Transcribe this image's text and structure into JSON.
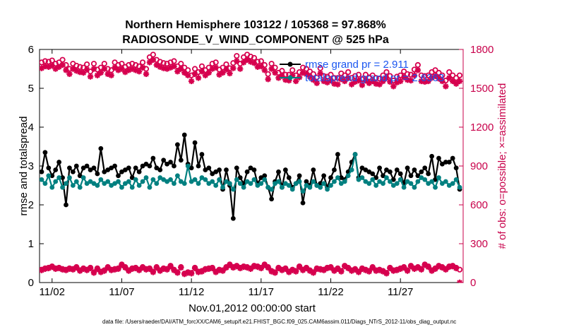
{
  "chart_data": {
    "type": "line",
    "title": "Northern Hemisphere 103122 / 105368 = 97.868%",
    "subtitle": "RADIOSONDE_V_WIND_COMPONENT @ 525 hPa",
    "xlabel": "Nov.01,2012 00:00:00 start",
    "ylabel": "rmse and totalspread",
    "ylabel_right": "# of obs: o=possible; ×=assimilated",
    "footer": "data file: /Users/raeder/DAI/ATM_forcXX/CAM6_setup/f.e21.FHIST_BGC.f09_025.CAM6assim.011/Diags_NTrS_2012-11/obs_diag_output.nc",
    "xlim": [
      0.6,
      31.0
    ],
    "ylim": [
      0,
      6
    ],
    "ylim_right": [
      0,
      1800
    ],
    "x_ticks": [
      1.5,
      6.5,
      11.5,
      16.5,
      21.5,
      26.5
    ],
    "x_tick_labels": [
      "11/02",
      "11/07",
      "11/12",
      "11/17",
      "11/22",
      "11/27"
    ],
    "y_ticks": [
      0,
      1,
      2,
      3,
      4,
      5,
      6
    ],
    "y_tick_labels": [
      "0",
      "1",
      "2",
      "3",
      "4",
      "5",
      "6"
    ],
    "y_ticks_right": [
      0,
      300,
      600,
      900,
      1200,
      1500,
      1800
    ],
    "y_tick_labels_right": [
      "0",
      "300",
      "600",
      "900",
      "1200",
      "1500",
      "1800"
    ],
    "x": [
      0.75,
      1.0,
      1.25,
      1.5,
      1.75,
      2.0,
      2.25,
      2.5,
      2.75,
      3.0,
      3.25,
      3.5,
      3.75,
      4.0,
      4.25,
      4.5,
      4.75,
      5.0,
      5.25,
      5.5,
      5.75,
      6.0,
      6.25,
      6.5,
      6.75,
      7.0,
      7.25,
      7.5,
      7.75,
      8.0,
      8.25,
      8.5,
      8.75,
      9.0,
      9.25,
      9.5,
      9.75,
      10.0,
      10.25,
      10.5,
      10.75,
      11.0,
      11.25,
      11.5,
      11.75,
      12.0,
      12.25,
      12.5,
      12.75,
      13.0,
      13.25,
      13.5,
      13.75,
      14.0,
      14.25,
      14.5,
      14.75,
      15.0,
      15.25,
      15.5,
      15.75,
      16.0,
      16.25,
      16.5,
      16.75,
      17.0,
      17.25,
      17.5,
      17.75,
      18.0,
      18.25,
      18.5,
      18.75,
      19.0,
      19.25,
      19.5,
      19.75,
      20.0,
      20.25,
      20.5,
      20.75,
      21.0,
      21.25,
      21.5,
      21.75,
      22.0,
      22.25,
      22.5,
      22.75,
      23.0,
      23.25,
      23.5,
      23.75,
      24.0,
      24.25,
      24.5,
      24.75,
      25.0,
      25.25,
      25.5,
      25.75,
      26.0,
      26.25,
      26.5,
      26.75,
      27.0,
      27.25,
      27.5,
      27.75,
      28.0,
      28.25,
      28.5,
      28.75,
      29.0,
      29.25,
      29.5,
      29.75,
      30.0,
      30.25,
      30.5,
      30.75
    ],
    "series": [
      {
        "name": "rmse",
        "legend_label": "rmse  grand pr = 2.911",
        "color": "#000000",
        "axis": "left",
        "marker": "filled-circle",
        "values": [
          2.85,
          3.35,
          2.95,
          2.75,
          2.9,
          3.1,
          2.7,
          2.0,
          2.95,
          2.85,
          3.0,
          2.75,
          2.95,
          3.0,
          2.9,
          2.95,
          2.8,
          3.45,
          2.85,
          2.9,
          2.95,
          3.0,
          2.75,
          2.85,
          2.9,
          2.95,
          2.7,
          2.95,
          2.85,
          3.0,
          3.05,
          3.0,
          3.2,
          2.95,
          2.9,
          3.15,
          3.05,
          3.1,
          3.0,
          3.55,
          3.15,
          3.8,
          3.05,
          2.95,
          3.6,
          3.0,
          3.3,
          2.9,
          2.95,
          2.8,
          2.85,
          2.9,
          2.4,
          2.9,
          2.5,
          1.65,
          2.95,
          2.7,
          2.55,
          2.85,
          2.95,
          2.9,
          2.55,
          2.7,
          2.75,
          2.45,
          2.15,
          2.6,
          2.85,
          2.45,
          2.9,
          2.7,
          2.45,
          2.55,
          2.75,
          2.05,
          2.6,
          2.5,
          2.9,
          2.5,
          2.55,
          2.75,
          2.45,
          2.7,
          2.9,
          3.3,
          2.7,
          2.65,
          2.85,
          3.1,
          3.3,
          2.7,
          2.95,
          2.9,
          2.85,
          2.8,
          2.7,
          2.95,
          2.75,
          2.9,
          2.85,
          2.65,
          2.9,
          2.8,
          2.55,
          2.95,
          2.75,
          2.9,
          2.75,
          2.85,
          2.95,
          2.8,
          3.25,
          2.65,
          3.2,
          3.05,
          3.1,
          3.1,
          3.2,
          2.95,
          2.4
        ]
      },
      {
        "name": "totalspread",
        "legend_label": "totalspread  grand pr = 2.6363",
        "color": "#008080",
        "axis": "left",
        "marker": "filled-circle",
        "values": [
          2.65,
          2.55,
          2.75,
          2.45,
          2.6,
          2.7,
          2.45,
          2.55,
          2.7,
          2.5,
          2.6,
          2.45,
          2.7,
          2.55,
          2.6,
          2.55,
          2.5,
          2.65,
          2.55,
          2.6,
          2.5,
          2.55,
          2.6,
          2.45,
          2.55,
          2.6,
          2.45,
          2.65,
          2.5,
          2.6,
          2.7,
          2.45,
          2.65,
          2.55,
          2.7,
          2.65,
          2.6,
          2.65,
          2.55,
          2.75,
          2.6,
          2.55,
          3.0,
          2.6,
          2.65,
          2.55,
          2.7,
          2.65,
          2.55,
          2.6,
          2.5,
          2.65,
          2.45,
          2.6,
          2.55,
          2.4,
          2.65,
          2.55,
          2.45,
          2.6,
          2.55,
          2.65,
          2.5,
          2.55,
          2.65,
          2.45,
          2.4,
          2.55,
          2.6,
          2.45,
          2.55,
          2.5,
          2.4,
          2.55,
          2.6,
          2.35,
          2.5,
          2.45,
          2.6,
          2.5,
          2.45,
          2.55,
          2.4,
          2.5,
          2.6,
          2.7,
          2.55,
          2.6,
          2.75,
          2.9,
          3.3,
          2.65,
          2.7,
          2.6,
          2.55,
          2.65,
          2.5,
          2.6,
          2.55,
          2.7,
          2.6,
          2.5,
          2.55,
          2.65,
          2.45,
          2.6,
          2.55,
          2.45,
          2.6,
          2.7,
          2.65,
          2.55,
          2.6,
          2.45,
          2.7,
          2.55,
          2.6,
          2.5,
          2.55,
          2.65,
          2.45
        ]
      },
      {
        "name": "obs_possible",
        "color": "#d6004e",
        "axis": "right",
        "marker": "circle",
        "values": [
          1700,
          1710,
          1705,
          1715,
          1690,
          1700,
          1720,
          1680,
          1650,
          1690,
          1675,
          1665,
          1660,
          1685,
          1630,
          1690,
          1645,
          1660,
          1690,
          1650,
          1640,
          1700,
          1680,
          1690,
          1665,
          1680,
          1690,
          1680,
          1670,
          1700,
          1650,
          1740,
          1760,
          1720,
          1705,
          1695,
          1690,
          1700,
          1710,
          1670,
          1690,
          1660,
          1640,
          1600,
          1650,
          1625,
          1670,
          1640,
          1660,
          1690,
          1700,
          1645,
          1660,
          1685,
          1655,
          1695,
          1750,
          1690,
          1740,
          1760,
          1745,
          1735,
          1705,
          1710,
          1680,
          1610,
          1690,
          1660,
          1620,
          1635,
          1605,
          1605,
          1640,
          1600,
          1625,
          1660,
          1650,
          1630,
          1610,
          1585,
          1655,
          1595,
          1590,
          1605,
          1580,
          1580,
          1615,
          1600,
          1625,
          1580,
          1595,
          1605,
          1570,
          1605,
          1585,
          1600,
          1580,
          1575,
          1600,
          1625,
          1595,
          1560,
          1590,
          1600,
          1630,
          1610,
          1605,
          1645,
          1680,
          1600,
          1595,
          1600,
          1625,
          1640,
          1620,
          1600,
          1560,
          1625,
          1600,
          1580,
          1600
        ]
      },
      {
        "name": "obs_assimilated",
        "color": "#d6004e",
        "axis": "right",
        "marker": "asterisk",
        "values": [
          1655,
          1670,
          1665,
          1675,
          1650,
          1665,
          1680,
          1640,
          1610,
          1650,
          1635,
          1625,
          1620,
          1645,
          1590,
          1650,
          1600,
          1620,
          1650,
          1610,
          1600,
          1660,
          1640,
          1650,
          1625,
          1640,
          1650,
          1640,
          1630,
          1660,
          1610,
          1700,
          1720,
          1680,
          1665,
          1655,
          1650,
          1660,
          1670,
          1630,
          1650,
          1620,
          1600,
          1555,
          1610,
          1580,
          1630,
          1600,
          1620,
          1650,
          1660,
          1605,
          1620,
          1645,
          1615,
          1655,
          1710,
          1650,
          1700,
          1720,
          1705,
          1695,
          1665,
          1670,
          1640,
          1570,
          1650,
          1620,
          1580,
          1595,
          1565,
          1560,
          1600,
          1555,
          1585,
          1620,
          1610,
          1590,
          1565,
          1540,
          1615,
          1555,
          1545,
          1560,
          1535,
          1530,
          1570,
          1555,
          1580,
          1530,
          1550,
          1560,
          1525,
          1560,
          1540,
          1555,
          1535,
          1530,
          1555,
          1580,
          1550,
          1515,
          1545,
          1555,
          1585,
          1565,
          1560,
          1600,
          1640,
          1555,
          1550,
          1555,
          1580,
          1595,
          1575,
          1555,
          1515,
          1580,
          1555,
          1535,
          1555
        ]
      },
      {
        "name": "obs_low_possible",
        "color": "#d6004e",
        "axis": "right",
        "marker": "circle",
        "values": [
          100,
          110,
          115,
          125,
          110,
          115,
          105,
          100,
          110,
          105,
          120,
          95,
          110,
          100,
          115,
          80,
          110,
          85,
          95,
          120,
          100,
          105,
          110,
          140,
          120,
          95,
          110,
          115,
          100,
          120,
          105,
          110,
          85,
          120,
          95,
          110,
          105,
          130,
          100,
          80,
          120,
          70,
          80,
          75,
          115,
          85,
          90,
          105,
          110,
          115,
          85,
          100,
          95,
          120,
          140,
          120,
          130,
          115,
          125,
          120,
          110,
          130,
          125,
          115,
          140,
          120,
          90,
          80,
          115,
          100,
          110,
          85,
          100,
          90,
          125,
          100,
          115,
          95,
          80,
          110,
          105,
          100,
          115,
          120,
          95,
          110,
          90,
          130,
          115,
          95,
          105,
          85,
          110,
          100,
          90,
          120,
          95,
          100,
          90,
          75,
          115,
          95,
          100,
          110,
          120,
          95,
          130,
          110,
          120,
          105,
          140,
          125,
          95,
          110,
          130,
          120,
          105,
          125,
          130,
          115,
          100
        ]
      },
      {
        "name": "obs_low_assimilated",
        "color": "#d6004e",
        "axis": "right",
        "marker": "asterisk",
        "values": [
          95,
          105,
          110,
          120,
          105,
          110,
          100,
          95,
          105,
          100,
          115,
          90,
          105,
          95,
          110,
          75,
          105,
          80,
          90,
          115,
          95,
          100,
          105,
          135,
          115,
          90,
          105,
          110,
          95,
          115,
          100,
          105,
          80,
          115,
          90,
          105,
          100,
          125,
          95,
          75,
          115,
          65,
          75,
          70,
          110,
          80,
          85,
          100,
          105,
          110,
          80,
          95,
          90,
          115,
          135,
          115,
          125,
          110,
          120,
          115,
          105,
          125,
          120,
          110,
          135,
          115,
          85,
          75,
          110,
          95,
          105,
          80,
          95,
          85,
          120,
          95,
          110,
          90,
          75,
          105,
          100,
          95,
          110,
          115,
          90,
          105,
          85,
          125,
          110,
          90,
          100,
          80,
          105,
          95,
          85,
          115,
          90,
          95,
          85,
          70,
          110,
          90,
          95,
          105,
          115,
          90,
          125,
          105,
          115,
          100,
          135,
          120,
          90,
          105,
          125,
          115,
          100,
          120,
          125,
          110,
          0
        ]
      }
    ]
  }
}
